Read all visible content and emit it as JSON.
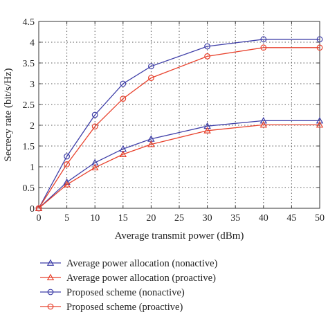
{
  "chart_data": {
    "type": "line",
    "xlabel": "Average transmit power (dBm)",
    "ylabel": "Secrecy rate (bit/s/Hz)",
    "xlim": [
      0,
      50
    ],
    "ylim": [
      0,
      4.5
    ],
    "xticks": [
      "0",
      "5",
      "10",
      "15",
      "20",
      "25",
      "30",
      "35",
      "40",
      "45",
      "50"
    ],
    "yticks": [
      "0",
      "0.5",
      "1",
      "1.5",
      "2",
      "2.5",
      "3",
      "3.5",
      "4",
      "4.5"
    ],
    "grid": true,
    "legend_position": "below",
    "x": [
      0,
      5,
      10,
      15,
      20,
      30,
      40,
      50
    ],
    "series": [
      {
        "name": "Average power allocation (nonactive)",
        "color": "#3f3fa8",
        "marker": "triangle",
        "values": [
          0,
          0.63,
          1.1,
          1.43,
          1.67,
          1.98,
          2.11,
          2.11
        ]
      },
      {
        "name": "Average power allocation (proactive)",
        "color": "#e8412c",
        "marker": "triangle",
        "values": [
          0,
          0.57,
          0.98,
          1.3,
          1.54,
          1.87,
          2.01,
          2.01
        ]
      },
      {
        "name": "Proposed scheme (nonactive)",
        "color": "#3f3fa8",
        "marker": "circle",
        "values": [
          0,
          1.25,
          2.25,
          3.0,
          3.42,
          3.9,
          4.07,
          4.07
        ]
      },
      {
        "name": "Proposed scheme (proactive)",
        "color": "#e8412c",
        "marker": "circle",
        "values": [
          0,
          1.06,
          1.97,
          2.64,
          3.14,
          3.66,
          3.87,
          3.87
        ]
      }
    ]
  }
}
